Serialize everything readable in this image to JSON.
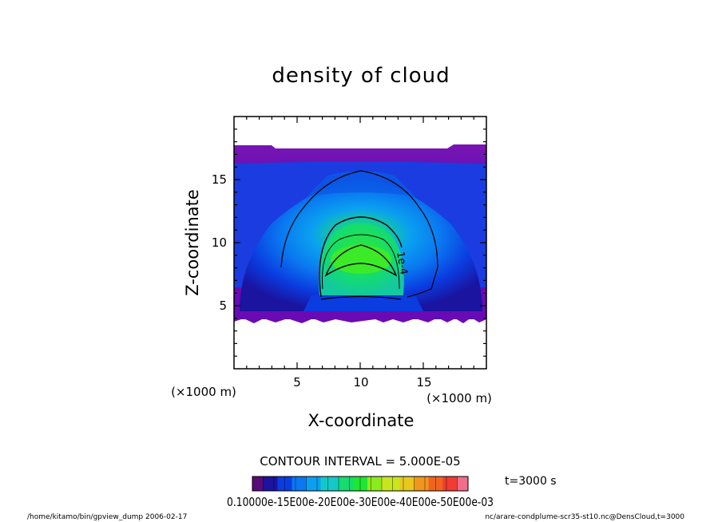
{
  "chart_data": {
    "type": "heatmap",
    "title": "density of cloud",
    "xlabel": "X-coordinate",
    "ylabel": "Z-coordinate",
    "x_unit": "(×1000 m)",
    "z_unit": "(×1000 m)",
    "xlim": [
      0,
      20
    ],
    "ylim": [
      0,
      20
    ],
    "x_ticks": [
      5,
      10,
      15
    ],
    "y_ticks": [
      5,
      10,
      15
    ],
    "contour_interval_text": "CONTOUR INTERVAL = 5.000E-05",
    "contour_label": "1e-4",
    "time_label": "t=3000 s",
    "colorbar_labels_text": "0.10000e-15E00e-20E00e-30E00e-40E00e-50E00e-03",
    "colormap": [
      "#5a0a78",
      "#1a14a0",
      "#0a3ce0",
      "#0a78f0",
      "#0aa0f0",
      "#14c8c8",
      "#14dc6e",
      "#1ee632",
      "#8ceb1e",
      "#c8e61e",
      "#e6c81e",
      "#f0961e",
      "#f0641e",
      "#f03c32",
      "#f06e8c"
    ],
    "colorbar_range": [
      0,
      0.0003
    ]
  },
  "footer": {
    "left": "/home/kitamo/bin/gpview_dump  2006-02-17",
    "right": "nc/arare-condplume-scr35-st10.nc@DensCloud,t=3000"
  }
}
